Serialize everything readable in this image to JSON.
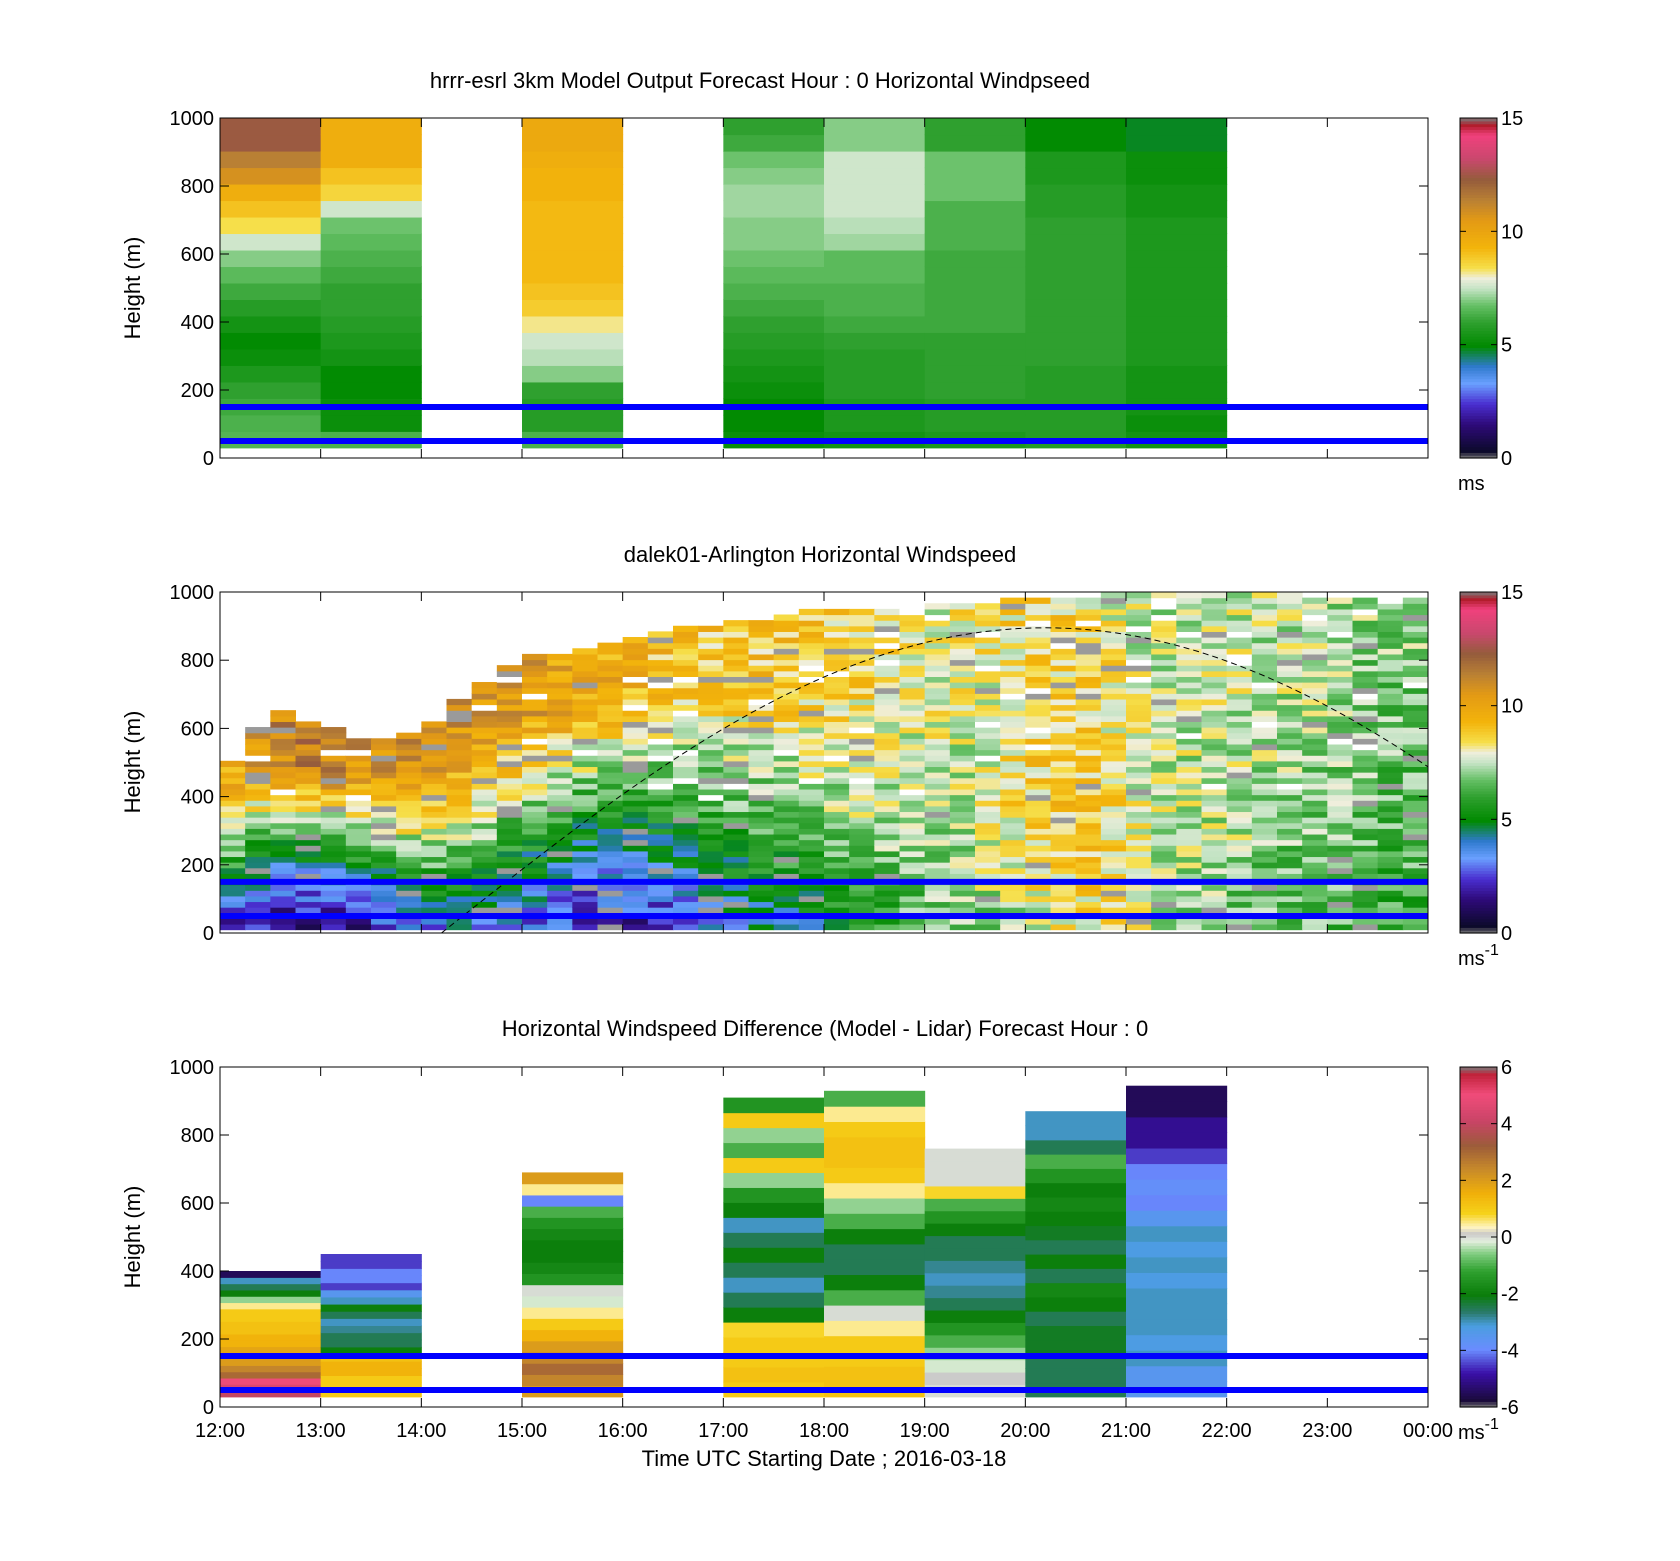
{
  "colors": {
    "speed_scale": [
      [
        0.0,
        "#7b7b7b"
      ],
      [
        0.02,
        "#0c0a2a"
      ],
      [
        0.1,
        "#2e0a7a"
      ],
      [
        0.16,
        "#4a2fd0"
      ],
      [
        0.22,
        "#6aa0ff"
      ],
      [
        0.27,
        "#2f7acd"
      ],
      [
        0.33,
        "#008a00"
      ],
      [
        0.4,
        "#2fa02f"
      ],
      [
        0.45,
        "#66c066"
      ],
      [
        0.5,
        "#c6e4c6"
      ],
      [
        0.53,
        "#efeedc"
      ],
      [
        0.56,
        "#f6df4a"
      ],
      [
        0.62,
        "#f3b40b"
      ],
      [
        0.7,
        "#e39a15"
      ],
      [
        0.76,
        "#b98034"
      ],
      [
        0.82,
        "#955c3c"
      ],
      [
        0.88,
        "#c9486d"
      ],
      [
        0.95,
        "#f0417d"
      ],
      [
        0.98,
        "#b01c2a"
      ],
      [
        1.0,
        "#7b7b7b"
      ]
    ],
    "diff_scale": [
      [
        0.0,
        "#7b7b7b"
      ],
      [
        0.02,
        "#1a0a3a"
      ],
      [
        0.1,
        "#3a0fa8"
      ],
      [
        0.17,
        "#6a8cff"
      ],
      [
        0.24,
        "#4a9ee0"
      ],
      [
        0.28,
        "#2a7a6a"
      ],
      [
        0.33,
        "#0a7d0a"
      ],
      [
        0.4,
        "#2fa02f"
      ],
      [
        0.45,
        "#7ccb7c"
      ],
      [
        0.49,
        "#e6efe0"
      ],
      [
        0.51,
        "#c8c8c8"
      ],
      [
        0.53,
        "#fff4c0"
      ],
      [
        0.57,
        "#f6d21a"
      ],
      [
        0.63,
        "#f0b00a"
      ],
      [
        0.7,
        "#c88a2a"
      ],
      [
        0.77,
        "#9c5c3a"
      ],
      [
        0.84,
        "#c84466"
      ],
      [
        0.92,
        "#f04c7a"
      ],
      [
        0.98,
        "#c0223a"
      ],
      [
        1.0,
        "#7b7b7b"
      ]
    ],
    "overlay_line": "#0000ff",
    "dashed_curve": "#000000"
  },
  "chart_data": [
    {
      "type": "heatmap",
      "title": "hrrr-esrl 3km Model Output   Forecast Hour : 0 Horizontal Windpseed",
      "xlabel": "",
      "ylabel": "Height (m)",
      "ylim": [
        0,
        1000
      ],
      "yticks": [
        "0",
        "200",
        "400",
        "600",
        "800",
        "1000"
      ],
      "colorbar": {
        "ticks": [
          "0",
          "5",
          "10",
          "15"
        ],
        "range": [
          0,
          15
        ],
        "unit": "ms",
        "unit_sup": ""
      },
      "columns": [
        {
          "time": "12:00",
          "top": 1000,
          "speeds": [
            6.5,
            6.4,
            6.2,
            6.0,
            5.6,
            5.2,
            5.0,
            5.4,
            5.8,
            6.2,
            6.6,
            7.0,
            7.6,
            8.4,
            9.0,
            9.6,
            10.8,
            11.4,
            12.4,
            12.4
          ]
        },
        {
          "time": "13:00",
          "top": 1000,
          "speeds": [
            6.4,
            5.2,
            5.2,
            5.0,
            5.0,
            5.4,
            5.6,
            5.8,
            6.0,
            6.0,
            6.2,
            6.4,
            6.6,
            6.8,
            7.6,
            8.6,
            9.0,
            9.6,
            9.6,
            9.6
          ]
        },
        {
          "time": "14:00",
          "top": 0,
          "speeds": []
        },
        {
          "time": "15:00",
          "top": 1000,
          "speeds": [
            6.4,
            5.8,
            5.8,
            6.0,
            7.0,
            7.4,
            7.6,
            8.2,
            8.8,
            9.0,
            9.2,
            9.2,
            9.2,
            9.2,
            9.2,
            9.4,
            9.4,
            9.6,
            9.8,
            9.8
          ]
        },
        {
          "time": "16:00",
          "top": 0,
          "speeds": []
        },
        {
          "time": "17:00",
          "top": 1000,
          "speeds": [
            5.2,
            5.0,
            5.0,
            5.2,
            5.4,
            5.6,
            5.8,
            6.0,
            6.2,
            6.4,
            6.6,
            6.8,
            7.0,
            7.0,
            7.2,
            7.2,
            7.0,
            6.8,
            6.2,
            6.0
          ]
        },
        {
          "time": "18:00",
          "top": 1000,
          "speeds": [
            5.4,
            5.6,
            5.6,
            5.8,
            5.8,
            5.8,
            6.0,
            6.2,
            6.4,
            6.4,
            6.6,
            6.6,
            7.2,
            7.4,
            7.6,
            7.6,
            7.6,
            7.6,
            7.0,
            7.0
          ]
        },
        {
          "time": "19:00",
          "top": 1000,
          "speeds": [
            5.6,
            5.8,
            5.8,
            6.0,
            6.0,
            6.0,
            6.0,
            6.2,
            6.2,
            6.2,
            6.2,
            6.2,
            6.4,
            6.4,
            6.4,
            6.8,
            6.8,
            6.8,
            6.0,
            6.0
          ]
        },
        {
          "time": "20:00",
          "top": 1000,
          "speeds": [
            5.8,
            5.8,
            5.8,
            5.8,
            5.8,
            6.0,
            6.0,
            6.0,
            6.0,
            6.0,
            6.0,
            6.0,
            6.0,
            6.0,
            5.8,
            5.8,
            5.6,
            5.6,
            5.0,
            5.0
          ]
        },
        {
          "time": "21:00",
          "top": 1000,
          "speeds": [
            5.4,
            5.2,
            5.4,
            5.4,
            5.4,
            5.6,
            5.6,
            5.6,
            5.6,
            5.6,
            5.6,
            5.6,
            5.6,
            5.6,
            5.4,
            5.4,
            5.2,
            5.2,
            4.8,
            4.8
          ]
        },
        {
          "time": "22:00",
          "top": 0,
          "speeds": []
        },
        {
          "time": "23:00",
          "top": 0,
          "speeds": []
        }
      ],
      "overlay_lines": [
        50,
        150
      ]
    },
    {
      "type": "heatmap",
      "title": "dalek01-Arlington  Horizontal Windspeed",
      "xlabel": "",
      "ylabel": "Height (m)",
      "ylim": [
        0,
        1000
      ],
      "yticks": [
        "0",
        "200",
        "400",
        "600",
        "800",
        "1000"
      ],
      "colorbar": {
        "ticks": [
          "0",
          "5",
          "10",
          "15"
        ],
        "range": [
          0,
          15
        ],
        "unit": "ms",
        "unit_sup": "-1"
      },
      "hourly_profiles": [
        {
          "hour": 0,
          "top": 450,
          "low": 2.0,
          "mid": 5.5,
          "high": 9.5
        },
        {
          "hour": 0.5,
          "top": 650,
          "low": 1.5,
          "mid": 5.0,
          "high": 11.0
        },
        {
          "hour": 1,
          "top": 600,
          "low": 1.2,
          "mid": 4.5,
          "high": 11.5
        },
        {
          "hour": 1.5,
          "top": 560,
          "low": 2.0,
          "mid": 5.5,
          "high": 10.5
        },
        {
          "hour": 2,
          "top": 580,
          "low": 3.0,
          "mid": 6.5,
          "high": 11.0
        },
        {
          "hour": 2.5,
          "top": 700,
          "low": 3.5,
          "mid": 7.0,
          "high": 10.5
        },
        {
          "hour": 3,
          "top": 800,
          "low": 3.0,
          "mid": 6.0,
          "high": 10.5
        },
        {
          "hour": 3.5,
          "top": 820,
          "low": 2.0,
          "mid": 5.0,
          "high": 10.0
        },
        {
          "hour": 4,
          "top": 850,
          "low": 1.5,
          "mid": 5.0,
          "high": 9.5
        },
        {
          "hour": 4.5,
          "top": 880,
          "low": 2.0,
          "mid": 5.5,
          "high": 9.0
        },
        {
          "hour": 5,
          "top": 900,
          "low": 3.5,
          "mid": 6.0,
          "high": 9.0
        },
        {
          "hour": 5.5,
          "top": 920,
          "low": 4.0,
          "mid": 6.5,
          "high": 9.0
        },
        {
          "hour": 6,
          "top": 950,
          "low": 4.5,
          "mid": 7.0,
          "high": 8.8
        },
        {
          "hour": 6.5,
          "top": 950,
          "low": 5.5,
          "mid": 7.5,
          "high": 8.5
        },
        {
          "hour": 7,
          "top": 950,
          "low": 6.5,
          "mid": 7.5,
          "high": 8.0
        },
        {
          "hour": 7.5,
          "top": 960,
          "low": 7.0,
          "mid": 7.5,
          "high": 8.0
        },
        {
          "hour": 8,
          "top": 970,
          "low": 7.5,
          "mid": 8.5,
          "high": 8.5
        },
        {
          "hour": 8.5,
          "top": 980,
          "low": 8.5,
          "mid": 9.0,
          "high": 8.5
        },
        {
          "hour": 9,
          "top": 990,
          "low": 8.0,
          "mid": 8.0,
          "high": 8.0
        },
        {
          "hour": 9.5,
          "top": 990,
          "low": 7.5,
          "mid": 7.5,
          "high": 7.5
        },
        {
          "hour": 10,
          "top": 990,
          "low": 7.0,
          "mid": 7.5,
          "high": 7.8
        },
        {
          "hour": 10.5,
          "top": 990,
          "low": 6.5,
          "mid": 7.0,
          "high": 7.5
        },
        {
          "hour": 11,
          "top": 980,
          "low": 6.5,
          "mid": 7.0,
          "high": 7.5
        },
        {
          "hour": 11.5,
          "top": 980,
          "low": 6.0,
          "mid": 6.5,
          "high": 7.0
        },
        {
          "hour": 12,
          "top": 980,
          "low": 6.0,
          "mid": 6.5,
          "high": 7.0
        }
      ],
      "dashed_curve": {
        "center_hour": 8.2,
        "peak_m": 895,
        "half_width_h": 6.0
      },
      "overlay_lines": [
        50,
        150
      ]
    },
    {
      "type": "heatmap",
      "title": "Horizontal Windspeed Difference (Model - Lidar) Forecast Hour : 0",
      "xlabel": "Time UTC  Starting Date ; 2016-03-18",
      "ylabel": "Height (m)",
      "ylim": [
        0,
        1000
      ],
      "yticks": [
        "0",
        "200",
        "400",
        "600",
        "800",
        "1000"
      ],
      "xticks": [
        "12:00",
        "13:00",
        "14:00",
        "15:00",
        "16:00",
        "17:00",
        "18:00",
        "19:00",
        "20:00",
        "21:00",
        "22:00",
        "23:00",
        "00:00"
      ],
      "colorbar": {
        "ticks": [
          "-6",
          "-4",
          "-2",
          "0",
          "2",
          "4",
          "6"
        ],
        "range": [
          -6,
          6
        ],
        "unit": "ms",
        "unit_sup": "-1"
      },
      "columns": [
        {
          "time": "12:00",
          "top": 400,
          "diffs": [
            4.0,
            4.5,
            5.0,
            3.0,
            2.5,
            2.0,
            2.0,
            1.8,
            1.5,
            1.5,
            1.2,
            1.2,
            1.0,
            1.0,
            0.5,
            -0.5,
            -2.0,
            -2.5,
            -3.0,
            -5.5
          ]
        },
        {
          "time": "13:00",
          "top": 450,
          "diffs": [
            1.0,
            1.0,
            1.0,
            1.5,
            1.5,
            1.2,
            -2.0,
            -2.5,
            -2.5,
            -2.8,
            -3.0,
            -2.5,
            -2.0,
            -3.0,
            -3.5,
            -4.5,
            -4.0,
            -4.0,
            -4.5,
            -4.5
          ]
        },
        {
          "time": "14:00",
          "top": 0,
          "diffs": []
        },
        {
          "time": "15:00",
          "top": 690,
          "diffs": [
            2.0,
            2.5,
            3.0,
            2.5,
            2.0,
            1.5,
            1.0,
            0.5,
            -0.2,
            0.0,
            -1.5,
            -1.8,
            -2.0,
            -2.0,
            -1.8,
            -1.5,
            -1.0,
            -4.0,
            0.5,
            2.0
          ]
        },
        {
          "time": "16:00",
          "top": 0,
          "diffs": []
        },
        {
          "time": "17:00",
          "top": 910,
          "diffs": [
            1.0,
            1.2,
            1.0,
            1.0,
            0.8,
            -2.0,
            -2.5,
            -3.0,
            -2.5,
            -2.0,
            -2.5,
            -3.0,
            -2.0,
            -1.5,
            -0.5,
            1.0,
            -1.0,
            -0.5,
            1.0,
            -1.5
          ]
        },
        {
          "time": "18:00",
          "top": 930,
          "diffs": [
            1.2,
            1.2,
            1.0,
            1.0,
            0.5,
            0.0,
            -1.0,
            -2.0,
            -2.5,
            -2.5,
            -2.0,
            -1.0,
            -0.5,
            0.5,
            1.0,
            1.2,
            1.2,
            1.0,
            0.5,
            -1.0
          ]
        },
        {
          "time": "19:00",
          "top": 760,
          "diffs": [
            0.0,
            0.1,
            -0.2,
            -0.5,
            -1.0,
            -1.5,
            -2.0,
            -2.5,
            -2.8,
            -3.0,
            -2.8,
            -2.5,
            -2.5,
            -2.0,
            -1.5,
            -1.0,
            0.8,
            0.0,
            0.0,
            0.0
          ]
        },
        {
          "time": "20:00",
          "top": 870,
          "diffs": [
            -2.5,
            -2.5,
            -2.5,
            -2.2,
            -2.2,
            -2.5,
            -2.0,
            -1.8,
            -2.5,
            -2.0,
            -2.5,
            -2.2,
            -2.0,
            -1.8,
            -2.0,
            -1.5,
            -1.0,
            -2.5,
            -3.0,
            -3.0
          ]
        },
        {
          "time": "21:00",
          "top": 945,
          "diffs": [
            -3.5,
            -3.5,
            -3.0,
            -3.2,
            -3.0,
            -3.0,
            -3.0,
            -3.2,
            -3.0,
            -3.2,
            -3.0,
            -3.5,
            -4.0,
            -3.8,
            -4.0,
            -4.5,
            -5.0,
            -5.0,
            -5.5,
            -5.5
          ]
        },
        {
          "time": "22:00",
          "top": 0,
          "diffs": []
        },
        {
          "time": "23:00",
          "top": 0,
          "diffs": []
        }
      ],
      "overlay_lines": [
        50,
        150
      ]
    }
  ]
}
